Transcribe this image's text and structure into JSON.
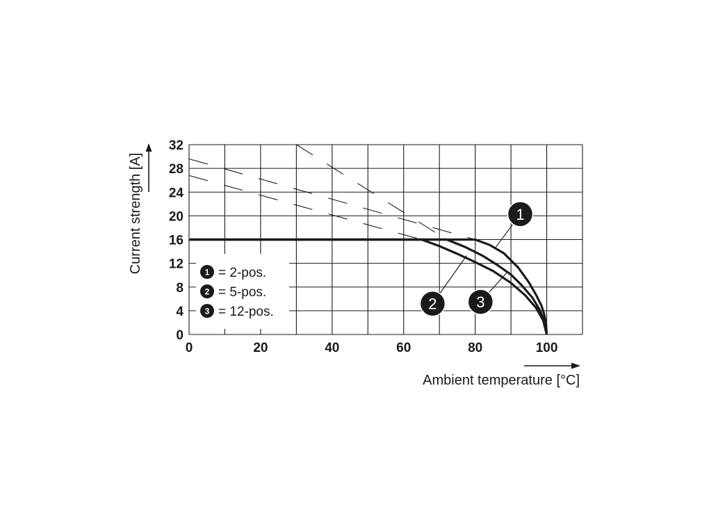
{
  "chart_data": {
    "type": "line",
    "xlabel": "Ambient temperature [°C]",
    "ylabel": "Current strength [A]",
    "xlim": [
      0,
      110
    ],
    "ylim": [
      0,
      32
    ],
    "x_ticks": [
      0,
      20,
      40,
      60,
      80,
      100
    ],
    "y_ticks": [
      0,
      4,
      8,
      12,
      16,
      20,
      24,
      28,
      32
    ],
    "x_tick_labels": [
      "0",
      "20",
      "40",
      "60",
      "80",
      "100"
    ],
    "y_tick_labels": [
      "0",
      "4",
      "8",
      "12",
      "16",
      "20",
      "24",
      "28",
      "32"
    ],
    "grid": true,
    "legend": [
      {
        "marker": "1",
        "label": "= 2-pos."
      },
      {
        "marker": "2",
        "label": "= 5-pos."
      },
      {
        "marker": "3",
        "label": "= 12-pos."
      }
    ],
    "legend_position": "bottom-left",
    "series": [
      {
        "marker": "1",
        "line": "solid",
        "x": [
          0,
          80,
          84,
          88,
          92,
          95,
          97,
          98.5,
          99.3,
          99.8,
          100
        ],
        "y": [
          16,
          16,
          15.1,
          13.7,
          11.3,
          8.8,
          6.7,
          4.9,
          3.4,
          1.8,
          0
        ]
      },
      {
        "marker": "2",
        "line": "solid",
        "x": [
          0,
          65,
          70,
          75,
          80,
          85,
          90,
          94,
          97,
          99,
          100
        ],
        "y": [
          16,
          16,
          14.9,
          13.6,
          12.2,
          10.7,
          8.7,
          6.6,
          4.5,
          2.4,
          0
        ]
      },
      {
        "marker": "3",
        "line": "solid",
        "x": [
          0,
          72,
          77,
          82,
          86,
          90,
          93,
          96,
          98,
          99.4,
          100
        ],
        "y": [
          16,
          16,
          14.8,
          13.3,
          11.8,
          10.1,
          8.3,
          6.2,
          4.2,
          2.2,
          0
        ]
      },
      {
        "marker": "1",
        "line": "dashed",
        "x": [
          0,
          80
        ],
        "y": [
          29.6,
          16
        ]
      },
      {
        "marker": "2",
        "line": "dashed",
        "x": [
          0,
          65
        ],
        "y": [
          26.8,
          16
        ]
      },
      {
        "marker": "3",
        "line": "dashed",
        "x": [
          30,
          72
        ],
        "y": [
          32,
          16
        ]
      }
    ],
    "callouts": [
      {
        "label": "1",
        "series": "1",
        "at": [
          92.6,
          20.3
        ],
        "points_to": [
          85.5,
          14.5
        ]
      },
      {
        "label": "2",
        "series": "2",
        "at": [
          68.1,
          5.2
        ],
        "points_to": [
          77.6,
          13.3
        ]
      },
      {
        "label": "3",
        "series": "3",
        "at": [
          81.5,
          5.5
        ],
        "points_to": [
          88.8,
          10.4
        ]
      }
    ]
  }
}
